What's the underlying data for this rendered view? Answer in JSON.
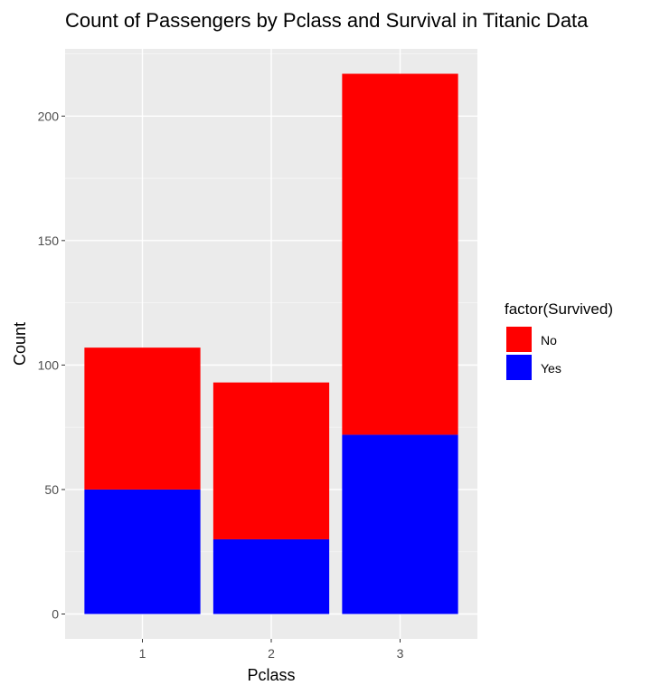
{
  "chart_data": {
    "type": "bar",
    "stacked": true,
    "title": "Count of Passengers by Pclass and Survival in Titanic Data",
    "xlabel": "Pclass",
    "ylabel": "Count",
    "categories": [
      "1",
      "2",
      "3"
    ],
    "series": [
      {
        "name": "No",
        "color": "#ff0000",
        "values": [
          57,
          63,
          145
        ]
      },
      {
        "name": "Yes",
        "color": "#0000ff",
        "values": [
          50,
          30,
          72
        ]
      }
    ],
    "ylim": [
      -10,
      227
    ],
    "yticks": [
      0,
      50,
      100,
      150,
      200
    ],
    "grid": true,
    "legend": {
      "title": "factor(Survived)",
      "position": "right"
    },
    "panel_background": "#ebebeb"
  }
}
